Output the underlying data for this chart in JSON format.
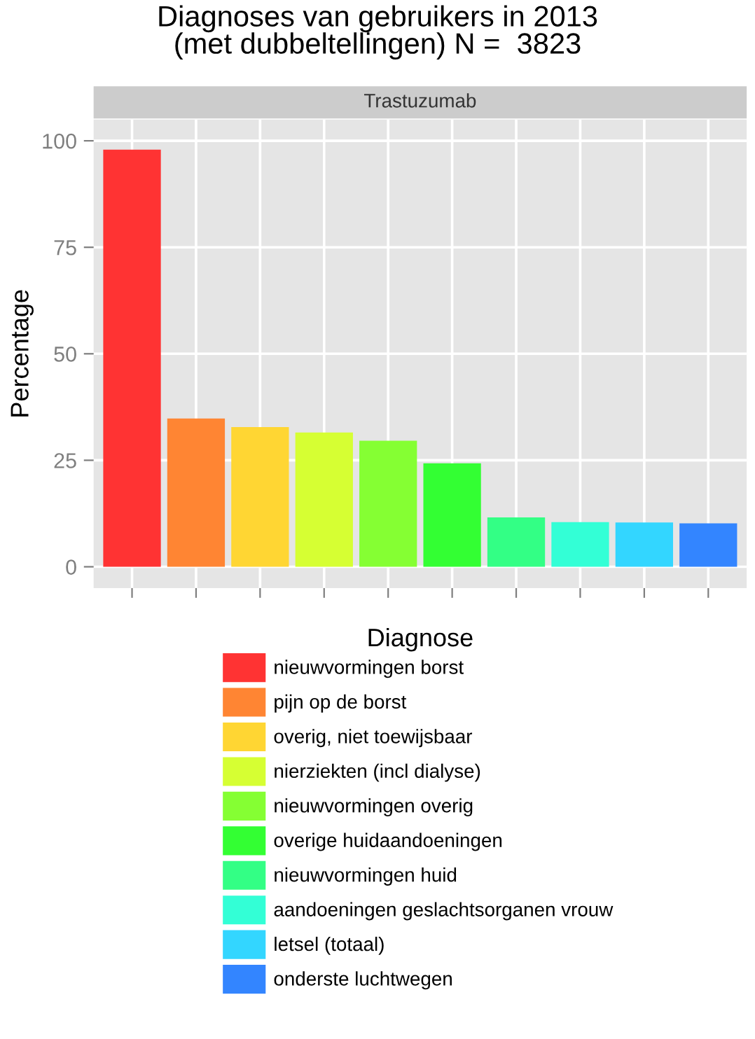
{
  "chart_data": {
    "type": "bar",
    "title": "Diagnoses van gebruikers in 2013\n(met dubbeltellingen) N =  3823",
    "subtitle": "Trastuzumab",
    "xlabel": "Diagnose",
    "ylabel": "Percentage",
    "categories": [
      null,
      null,
      null,
      null,
      null,
      null,
      null,
      null,
      null,
      null
    ],
    "series": [
      {
        "name": "nieuwvormingen borst",
        "color": "#ff3333",
        "values": [
          97.9,
          null,
          null,
          null,
          null,
          null,
          null,
          null,
          null,
          null
        ]
      },
      {
        "name": "pijn op de borst",
        "color": "#ff8533",
        "values": [
          null,
          34.8,
          null,
          null,
          null,
          null,
          null,
          null,
          null,
          null
        ]
      },
      {
        "name": "overig, niet toewijsbaar",
        "color": "#ffd633",
        "values": [
          null,
          null,
          32.8,
          null,
          null,
          null,
          null,
          null,
          null,
          null
        ]
      },
      {
        "name": "nierziekten (incl dialyse)",
        "color": "#d6ff33",
        "values": [
          null,
          null,
          null,
          31.5,
          null,
          null,
          null,
          null,
          null,
          null
        ]
      },
      {
        "name": "nieuwvormingen overig",
        "color": "#85ff33",
        "values": [
          null,
          null,
          null,
          null,
          29.6,
          null,
          null,
          null,
          null,
          null
        ]
      },
      {
        "name": "overige huidaandoeningen",
        "color": "#33ff33",
        "values": [
          null,
          null,
          null,
          null,
          null,
          24.3,
          null,
          null,
          null,
          null
        ]
      },
      {
        "name": "nieuwvormingen huid",
        "color": "#33ff85",
        "values": [
          null,
          null,
          null,
          null,
          null,
          null,
          11.6,
          null,
          null,
          null
        ]
      },
      {
        "name": "aandoeningen geslachtsorganen vrouw",
        "color": "#33ffd6",
        "values": [
          null,
          null,
          null,
          null,
          null,
          null,
          null,
          10.5,
          null,
          null
        ]
      },
      {
        "name": "letsel (totaal)",
        "color": "#33d6ff",
        "values": [
          null,
          null,
          null,
          null,
          null,
          null,
          null,
          null,
          10.4,
          null
        ]
      },
      {
        "name": "onderste luchtwegen",
        "color": "#3385ff",
        "values": [
          null,
          null,
          null,
          null,
          null,
          null,
          null,
          null,
          null,
          10.2
        ]
      }
    ],
    "ylim": [
      -5,
      105
    ],
    "yticks": [
      0,
      25,
      50,
      75,
      100
    ],
    "grid": true,
    "legend": "bottom"
  }
}
